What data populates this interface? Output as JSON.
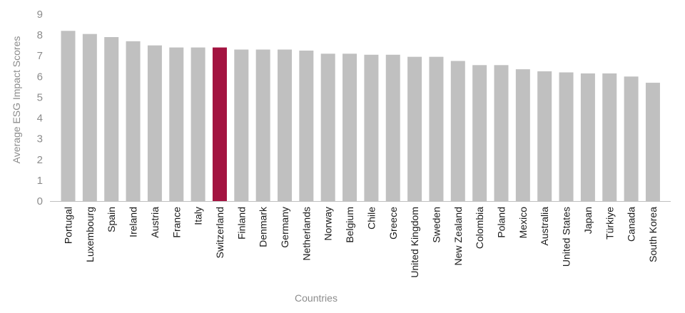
{
  "chart_data": {
    "type": "bar",
    "xlabel": "Countries",
    "ylabel": "Average ESG Impact Scores",
    "ylim": [
      0,
      9
    ],
    "yticks": [
      0,
      1,
      2,
      3,
      4,
      5,
      6,
      7,
      8,
      9
    ],
    "grid": false,
    "categories": [
      "Portugal",
      "Luxembourg",
      "Spain",
      "Ireland",
      "Austria",
      "France",
      "Italy",
      "Switzerland",
      "Finland",
      "Denmark",
      "Germany",
      "Netherlands",
      "Norway",
      "Belgium",
      "Chile",
      "Greece",
      "United Kingdom",
      "Sweden",
      "New Zealand",
      "Colombia",
      "Poland",
      "Mexico",
      "Australia",
      "United States",
      "Japan",
      "Türkiye",
      "Canada",
      "South Korea"
    ],
    "values": [
      8.2,
      8.05,
      7.9,
      7.7,
      7.5,
      7.4,
      7.4,
      7.4,
      7.3,
      7.3,
      7.3,
      7.25,
      7.1,
      7.1,
      7.05,
      7.05,
      6.95,
      6.95,
      6.75,
      6.55,
      6.55,
      6.35,
      6.25,
      6.2,
      6.15,
      6.15,
      6.0,
      5.7
    ],
    "highlight": "Switzerland",
    "colors": {
      "bar": "#c0c0c0",
      "highlight": "#a31340",
      "axis": "#bfbfbf"
    }
  }
}
